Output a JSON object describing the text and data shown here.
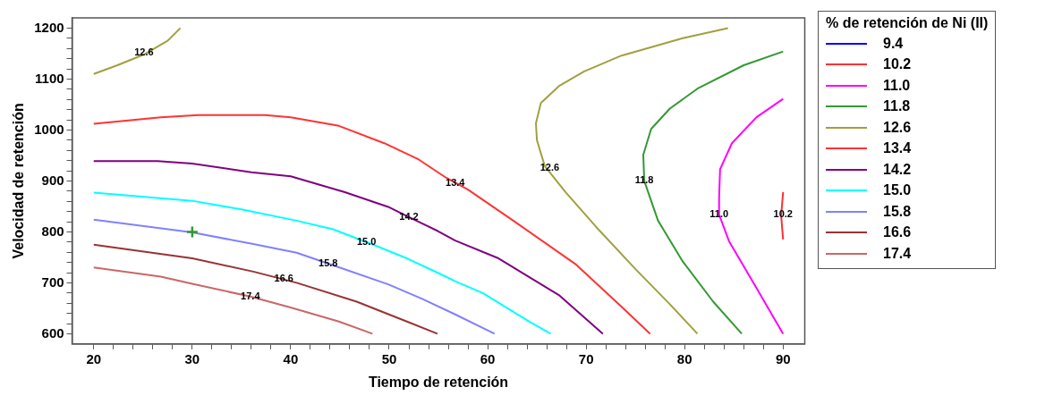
{
  "chart_data": {
    "type": "line",
    "xlabel": "Tiempo de retención",
    "ylabel": "Velocidad de retención",
    "legend_title": "% de retención de Ni (II)",
    "legend": "right",
    "grid": false,
    "marker": "none",
    "xlim": [
      17.8,
      92.2
    ],
    "ylim": [
      580,
      1220
    ],
    "xticks": [
      20,
      {
        "value": 22,
        "label": null
      },
      {
        "value": 24,
        "label": null
      },
      {
        "value": 26,
        "label": null
      },
      {
        "value": 28,
        "label": null
      },
      30,
      {
        "value": 32,
        "label": null
      },
      {
        "value": 34,
        "label": null
      },
      {
        "value": 36,
        "label": null
      },
      {
        "value": 38,
        "label": null
      },
      40,
      {
        "value": 42,
        "label": null
      },
      {
        "value": 44,
        "label": null
      },
      {
        "value": 46,
        "label": null
      },
      {
        "value": 48,
        "label": null
      },
      50,
      {
        "value": 52,
        "label": null
      },
      {
        "value": 54,
        "label": null
      },
      {
        "value": 56,
        "label": null
      },
      {
        "value": 58,
        "label": null
      },
      60,
      {
        "value": 62,
        "label": null
      },
      {
        "value": 64,
        "label": null
      },
      {
        "value": 66,
        "label": null
      },
      {
        "value": 68,
        "label": null
      },
      70,
      {
        "value": 72,
        "label": null
      },
      {
        "value": 74,
        "label": null
      },
      {
        "value": 76,
        "label": null
      },
      {
        "value": 78,
        "label": null
      },
      80,
      {
        "value": 82,
        "label": null
      },
      {
        "value": 84,
        "label": null
      },
      {
        "value": 86,
        "label": null
      },
      {
        "value": 88,
        "label": null
      },
      90
    ],
    "yticks": [
      600,
      {
        "value": 620,
        "label": null
      },
      {
        "value": 640,
        "label": null
      },
      {
        "value": 660,
        "label": null
      },
      {
        "value": 680,
        "label": null
      },
      700,
      {
        "value": 720,
        "label": null
      },
      {
        "value": 740,
        "label": null
      },
      {
        "value": 760,
        "label": null
      },
      {
        "value": 780,
        "label": null
      },
      800,
      {
        "value": 820,
        "label": null
      },
      {
        "value": 840,
        "label": null
      },
      {
        "value": 860,
        "label": null
      },
      {
        "value": 880,
        "label": null
      },
      900,
      {
        "value": 920,
        "label": null
      },
      {
        "value": 940,
        "label": null
      },
      {
        "value": 960,
        "label": null
      },
      {
        "value": 980,
        "label": null
      },
      1000,
      {
        "value": 1020,
        "label": null
      },
      {
        "value": 1040,
        "label": null
      },
      {
        "value": 1060,
        "label": null
      },
      {
        "value": 1080,
        "label": null
      },
      1100,
      {
        "value": 1120,
        "label": null
      },
      {
        "value": 1140,
        "label": null
      },
      {
        "value": 1160,
        "label": null
      },
      {
        "value": 1180,
        "label": null
      },
      1200
    ],
    "series": [
      {
        "name": "9.4",
        "color": "#0000ff"
      },
      {
        "name": "10.2",
        "color": "#ff3030",
        "x": [
          90,
          89.8,
          90
        ],
        "values": [
          878,
          832,
          785
        ]
      },
      {
        "name": "11.0",
        "color": "#ff00ff",
        "x": [
          90,
          87.3,
          84.8,
          83.6,
          83.5,
          83.5,
          84.5,
          86.9,
          90
        ],
        "values": [
          1061,
          1025,
          974,
          923,
          866,
          834,
          782,
          703,
          600
        ]
      },
      {
        "name": "11.8",
        "color": "#339933",
        "x": [
          90,
          86,
          81.3,
          78.5,
          76.6,
          75.8,
          75.9,
          77.3,
          79.8,
          82.9,
          85.8
        ],
        "values": [
          1154,
          1127,
          1081,
          1042,
          1002,
          951,
          900,
          822,
          742,
          663,
          600
        ]
      },
      {
        "name": "12.6",
        "color": "#a0a040",
        "x": [
          84.4,
          79.8,
          73.6,
          69.8,
          67.3,
          65.4,
          64.9,
          65,
          65.8,
          67.9,
          71,
          75.1,
          78.5,
          81.3
        ],
        "values": [
          1200,
          1180,
          1146,
          1115,
          1087,
          1053,
          1013,
          980,
          929,
          878,
          810,
          725,
          658,
          600
        ]
      },
      {
        "color": "#a0a040",
        "x": [
          20,
          22.4,
          25.2,
          27.5,
          28.8
        ],
        "values": [
          1110,
          1127,
          1149,
          1175,
          1200
        ]
      },
      {
        "name": "13.4",
        "color": "#ff3333",
        "x": [
          20,
          26.8,
          30.6,
          37.4,
          40,
          44.9,
          49.5,
          53,
          55.8,
          58,
          62.6,
          68.9,
          73.6,
          76.5
        ],
        "values": [
          1012,
          1025,
          1029,
          1029,
          1025,
          1008,
          974,
          942,
          906,
          883,
          822,
          737,
          653,
          600
        ]
      },
      {
        "name": "14.2",
        "color": "#800080",
        "x": [
          20,
          26.5,
          30,
          36,
          40,
          45.5,
          49.9,
          52,
          54.9,
          56.7,
          61.1,
          67.3,
          71.7
        ],
        "values": [
          939,
          939,
          934,
          917,
          909,
          878,
          849,
          829,
          802,
          783,
          748,
          675,
          600
        ]
      },
      {
        "name": "15.0",
        "color": "#00ffff",
        "x": [
          20,
          30,
          35,
          40.6,
          44.3,
          48.6,
          51.8,
          54.9,
          56.7,
          59.5,
          64.2,
          66.4
        ],
        "values": [
          877,
          861,
          844,
          822,
          805,
          773,
          748,
          720,
          703,
          680,
          624,
          600
        ]
      },
      {
        "name": "15.8",
        "color": "#8080ff",
        "x": [
          20,
          30,
          36.2,
          40.6,
          43.9,
          49.9,
          53.3,
          56.7,
          60.7
        ],
        "values": [
          824,
          799,
          776,
          759,
          737,
          697,
          669,
          638,
          600
        ]
      },
      {
        "name": "16.6",
        "color": "#993333",
        "x": [
          20,
          30,
          36.2,
          40.6,
          46.7,
          51.8,
          54.9
        ],
        "values": [
          775,
          748,
          722,
          700,
          663,
          624,
          600
        ]
      },
      {
        "name": "17.4",
        "color": "#cc6666",
        "x": [
          20,
          26.8,
          30,
          35.9,
          39.9,
          44.9,
          48.3
        ],
        "values": [
          730,
          712,
          698,
          673,
          652,
          624,
          600
        ]
      },
      {
        "type": "scatter",
        "marker": "cross",
        "color": "#339933",
        "x": [
          30
        ],
        "values": [
          800
        ]
      }
    ],
    "annotations": [
      {
        "text": "12.6",
        "x": 25.1,
        "y": 1151
      },
      {
        "text": "13.4",
        "x": 56.7,
        "y": 895
      },
      {
        "text": "14.2",
        "x": 52,
        "y": 829
      },
      {
        "text": "15.0",
        "x": 47.7,
        "y": 780
      },
      {
        "text": "15.8",
        "x": 43.8,
        "y": 737
      },
      {
        "text": "16.6",
        "x": 39.3,
        "y": 708
      },
      {
        "text": "17.4",
        "x": 35.9,
        "y": 673
      },
      {
        "text": "12.6",
        "x": 66.3,
        "y": 925
      },
      {
        "text": "11.8",
        "x": 75.9,
        "y": 900
      },
      {
        "text": "11.0",
        "x": 83.5,
        "y": 834
      },
      {
        "text": "10.2",
        "x": 90,
        "y": 834
      }
    ]
  }
}
